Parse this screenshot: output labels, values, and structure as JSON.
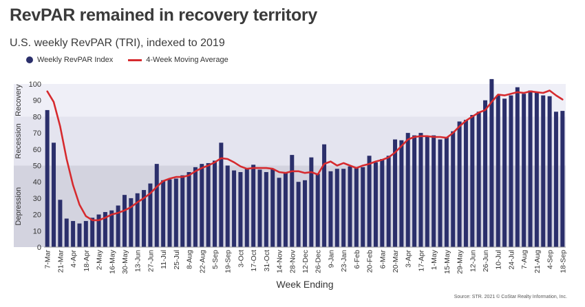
{
  "title": "RevPAR remained in recovery territory",
  "subtitle": "U.S. weekly RevPAR (TRI), indexed to 2019",
  "source": "Source: STR. 2021 © CoStar Realty Information, Inc.",
  "legend": {
    "bars": "Weekly RevPAR Index",
    "line": "4-Week Moving Average"
  },
  "colors": {
    "bar": "#2b2f6b",
    "line": "#d62a2e",
    "band_recovery": "#efeff7",
    "band_recession": "#e4e4ef",
    "band_depression": "#d3d3df"
  },
  "chart_data": {
    "type": "bar",
    "xlabel": "Week Ending",
    "ylabel": "",
    "ylim": [
      0,
      100
    ],
    "yticks": [
      0,
      10,
      20,
      30,
      40,
      50,
      60,
      70,
      80,
      90,
      100
    ],
    "bands": [
      {
        "label": "Recovery",
        "from": 80,
        "to": 100
      },
      {
        "label": "Recession",
        "from": 50,
        "to": 80
      },
      {
        "label": "Depression",
        "from": 0,
        "to": 50
      }
    ],
    "categories": [
      "7-Mar",
      "14-Mar",
      "21-Mar",
      "28-Mar",
      "4-Apr",
      "11-Apr",
      "18-Apr",
      "25-Apr",
      "2-May",
      "9-May",
      "16-May",
      "23-May",
      "30-May",
      "6-Jun",
      "13-Jun",
      "20-Jun",
      "27-Jun",
      "4-Jul",
      "11-Jul",
      "18-Jul",
      "25-Jul",
      "1-Aug",
      "8-Aug",
      "15-Aug",
      "22-Aug",
      "29-Aug",
      "5-Sep",
      "12-Sep",
      "19-Sep",
      "26-Sep",
      "3-Oct",
      "10-Oct",
      "17-Oct",
      "24-Oct",
      "31-Oct",
      "7-Nov",
      "14-Nov",
      "21-Nov",
      "28-Nov",
      "5-Dec",
      "12-Dec",
      "19-Dec",
      "26-Dec",
      "2-Jan",
      "9-Jan",
      "16-Jan",
      "23-Jan",
      "30-Jan",
      "6-Feb",
      "13-Feb",
      "20-Feb",
      "27-Feb",
      "6-Mar",
      "13-Mar",
      "20-Mar",
      "27-Mar",
      "3-Apr",
      "10-Apr",
      "17-Apr",
      "24-Apr",
      "1-May",
      "8-May",
      "15-May",
      "22-May",
      "29-May",
      "5-Jun",
      "12-Jun",
      "19-Jun",
      "26-Jun",
      "3-Jul",
      "10-Jul",
      "17-Jul",
      "24-Jul",
      "31-Jul",
      "7-Aug",
      "14-Aug",
      "21-Aug",
      "28-Aug",
      "4-Sep",
      "11-Sep",
      "18-Sep"
    ],
    "tick_labels": [
      "7-Mar",
      "21-Mar",
      "4-Apr",
      "18-Apr",
      "2-May",
      "16-May",
      "30-May",
      "13-Jun",
      "27-Jun",
      "11-Jul",
      "25-Jul",
      "8-Aug",
      "22-Aug",
      "5-Sep",
      "19-Sep",
      "3-Oct",
      "17-Oct",
      "31-Oct",
      "14-Nov",
      "28-Nov",
      "12-Dec",
      "26-Dec",
      "9-Jan",
      "23-Jan",
      "6-Feb",
      "20-Feb",
      "6-Mar",
      "20-Mar",
      "3-Apr",
      "17-Apr",
      "1-May",
      "15-May",
      "29-May",
      "12-Jun",
      "26-Jun",
      "10-Jul",
      "24-Jul",
      "7-Aug",
      "21-Aug",
      "4-Sep",
      "18-Sep"
    ],
    "series": [
      {
        "name": "Weekly RevPAR Index",
        "kind": "bar",
        "values": [
          84,
          64,
          29,
          17.5,
          16,
          14.5,
          16,
          18,
          20,
          21.5,
          22.5,
          25.5,
          32,
          30,
          33,
          35,
          39,
          51,
          41,
          41.5,
          42,
          44,
          46,
          49,
          51,
          51.5,
          53,
          64,
          50,
          47,
          46,
          48,
          50.5,
          47.5,
          46,
          48,
          42.5,
          46,
          56.5,
          40,
          41,
          55,
          45,
          63,
          46.5,
          48,
          48,
          49.5,
          48.5,
          49,
          56,
          52,
          54,
          56,
          66,
          65.5,
          70,
          68.5,
          70,
          68,
          68.5,
          66,
          67.5,
          71,
          77,
          78,
          81,
          83,
          90,
          103,
          93,
          91,
          93,
          98,
          94,
          96,
          95,
          93,
          92.5,
          83,
          83.5
        ]
      },
      {
        "name": "4-Week Moving Average",
        "kind": "line",
        "values": [
          95.5,
          89,
          74,
          54,
          38,
          26,
          19,
          16.5,
          16.5,
          18,
          20,
          21,
          22.5,
          24.5,
          27.5,
          30,
          33,
          37,
          40.5,
          42,
          43,
          43,
          44,
          46.5,
          48.5,
          50,
          52,
          54.5,
          54,
          52,
          49.5,
          48,
          48.5,
          48.5,
          48.5,
          48,
          46,
          45.5,
          46.5,
          46.5,
          45.5,
          46,
          44.5,
          51,
          52.5,
          50,
          51.5,
          50,
          48.5,
          50,
          51,
          52.5,
          53.5,
          55,
          58,
          62,
          66,
          67.5,
          68,
          68,
          67.5,
          67.5,
          67,
          70,
          74,
          77.5,
          80,
          82.5,
          84,
          89,
          93.5,
          93,
          94,
          95,
          94.5,
          95.5,
          95,
          94.5,
          96,
          93,
          90.5
        ]
      }
    ]
  }
}
